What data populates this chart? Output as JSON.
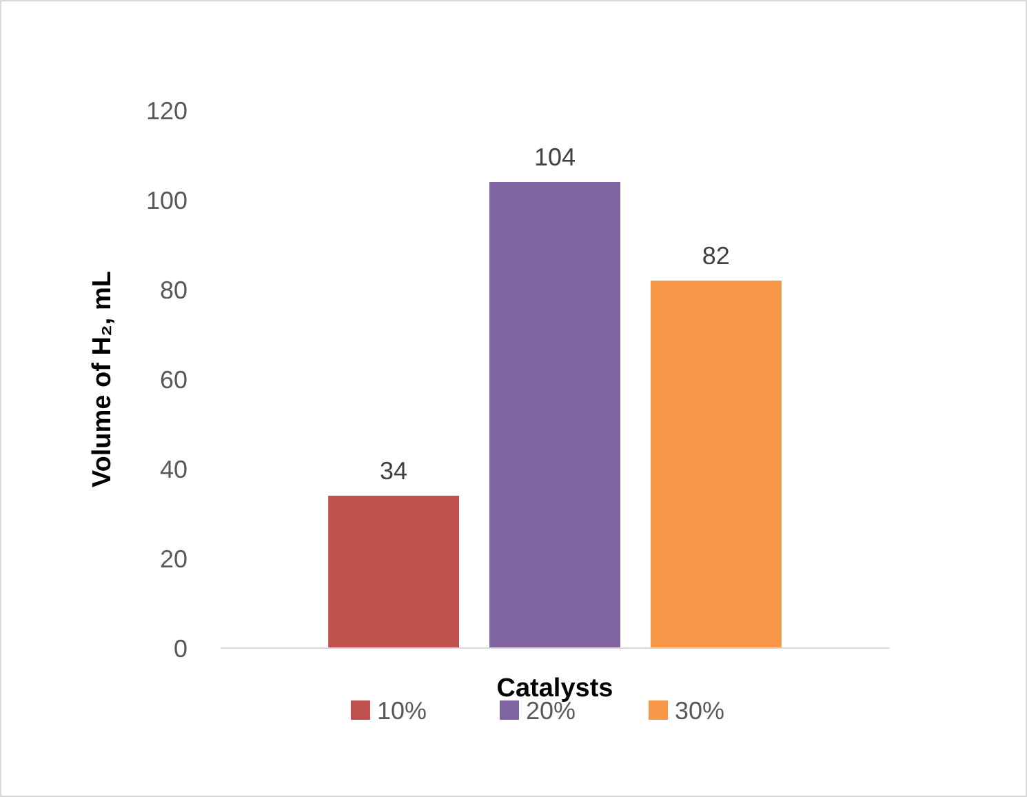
{
  "chart_data": {
    "type": "bar",
    "xlabel": "Catalysts",
    "ylabel": "Volume of H₂, mL",
    "categories": [
      null
    ],
    "series": [
      {
        "name": "10%",
        "color": "#c0504d",
        "values": [
          34
        ]
      },
      {
        "name": "20%",
        "color": "#8064a2",
        "values": [
          104
        ]
      },
      {
        "name": "30%",
        "color": "#f79646",
        "values": [
          82
        ]
      }
    ],
    "ylim": [
      0,
      120
    ],
    "yticks": [
      0,
      20,
      40,
      60,
      80,
      100,
      120
    ],
    "grid": false,
    "data_labels": true,
    "legend": "bottom"
  }
}
